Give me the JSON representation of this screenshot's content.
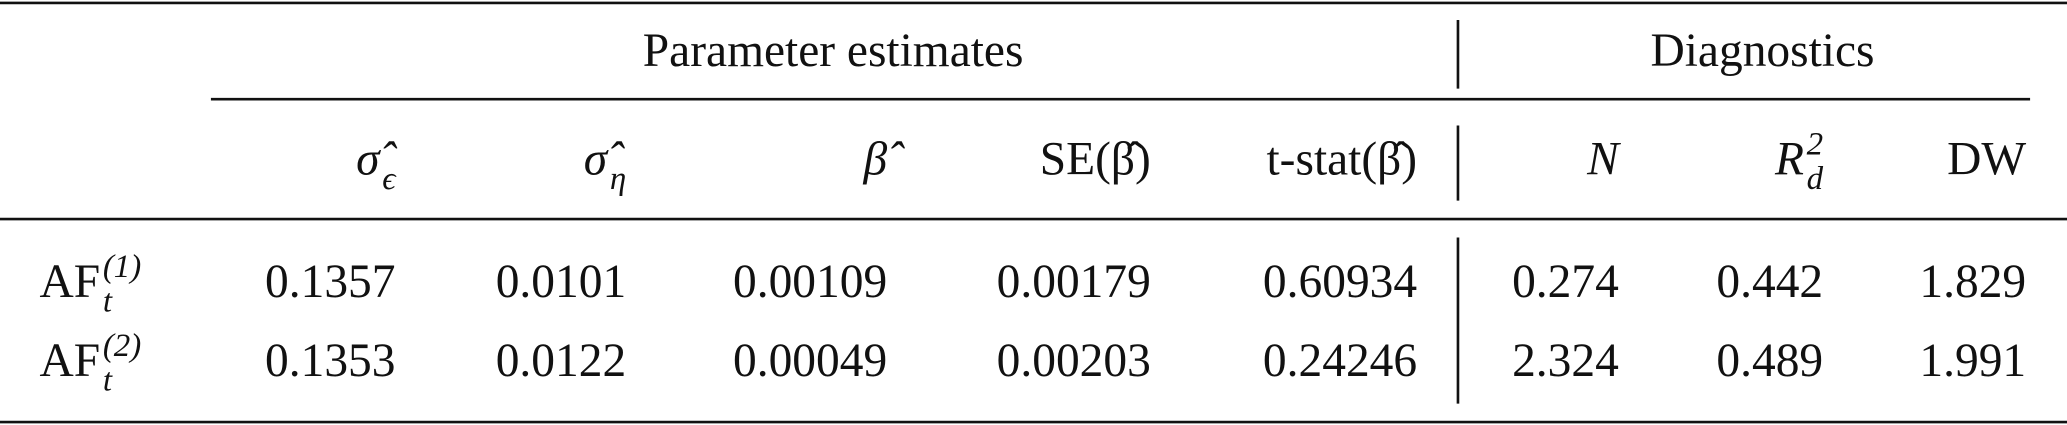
{
  "table": {
    "groups": [
      "Parameter estimates",
      "Diagnostics"
    ],
    "columns": [
      {
        "base": "σ̂",
        "sub": "ϵ"
      },
      {
        "base": "σ̂",
        "sub": "η"
      },
      {
        "base": "β̂"
      },
      {
        "base": "SE(β̂)"
      },
      {
        "base": "t-stat(β̂)"
      },
      {
        "base": "N"
      },
      {
        "base": "R",
        "sub": "d",
        "sup": "2"
      },
      {
        "base": "DW"
      }
    ],
    "rows": [
      {
        "label": {
          "base": "AF",
          "sub": "t",
          "sup": "(1)"
        },
        "cells": [
          "0.1357",
          "0.0101",
          "0.00109",
          "0.00179",
          "0.60934",
          "0.274",
          "0.442",
          "1.829"
        ]
      },
      {
        "label": {
          "base": "AF",
          "sub": "t",
          "sup": "(2)"
        },
        "cells": [
          "0.1353",
          "0.0122",
          "0.00049",
          "0.00203",
          "0.24246",
          "2.324",
          "0.489",
          "1.991"
        ]
      }
    ]
  }
}
